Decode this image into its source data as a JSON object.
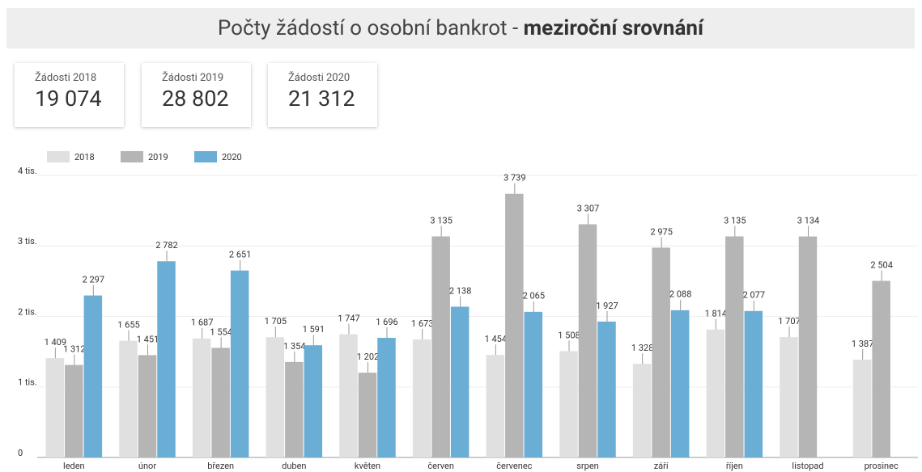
{
  "header": {
    "title": "Počty žádostí o osobní bankrot -",
    "title_bold": "meziroční srovnání"
  },
  "cards": [
    {
      "label": "Žádosti 2018",
      "value": "19 074"
    },
    {
      "label": "Žádosti 2019",
      "value": "28 802"
    },
    {
      "label": "Žádosti 2020",
      "value": "21 312"
    }
  ],
  "chart_data": {
    "type": "bar",
    "categories": [
      "leden",
      "únor",
      "březen",
      "duben",
      "květen",
      "červen",
      "červenec",
      "srpen",
      "září",
      "říjen",
      "listopad",
      "prosinec"
    ],
    "series": [
      {
        "name": "2018",
        "color": "#e0e0e0",
        "label_color": "#c8c8c8",
        "values": [
          1409,
          1655,
          1687,
          1705,
          1747,
          1673,
          1454,
          1508,
          1328,
          1814,
          1707,
          1387
        ],
        "value_labels": [
          "1 409",
          "1 655",
          "1 687",
          "1 705",
          "1 747",
          "1 673",
          "1 454",
          "1 508",
          "1 328",
          "1 814",
          "1 707",
          "1 387"
        ]
      },
      {
        "name": "2019",
        "color": "#b5b5b5",
        "label_color": "#9a9a9a",
        "values": [
          1312,
          1451,
          1554,
          1354,
          1202,
          3135,
          3739,
          3307,
          2975,
          3135,
          3134,
          2504
        ],
        "value_labels": [
          "1 312",
          "1 451",
          "1 554",
          "1 354",
          "1 202",
          "3 135",
          "3 739",
          "3 307",
          "2 975",
          "3 135",
          "3 134",
          "2 504"
        ]
      },
      {
        "name": "2020",
        "color": "#6aaed6",
        "label_color": "#4a9fd4",
        "values": [
          2297,
          2782,
          2651,
          1591,
          1696,
          2138,
          2065,
          1927,
          2088,
          2077,
          null,
          null
        ],
        "value_labels": [
          "2 297",
          "2 782",
          "2 651",
          "1 591",
          "1 696",
          "2 138",
          "2 065",
          "1 927",
          "2 088",
          "2 077",
          null,
          null
        ]
      }
    ],
    "ylim": [
      0,
      4000
    ],
    "yticks": [
      0,
      {
        "value": 1000,
        "label": "1 tis."
      },
      {
        "value": 2000,
        "label": "2 tis."
      },
      {
        "value": 3000,
        "label": "3 tis."
      },
      {
        "value": 4000,
        "label": "4 tis."
      }
    ],
    "grid": true,
    "legend": "top-left"
  }
}
